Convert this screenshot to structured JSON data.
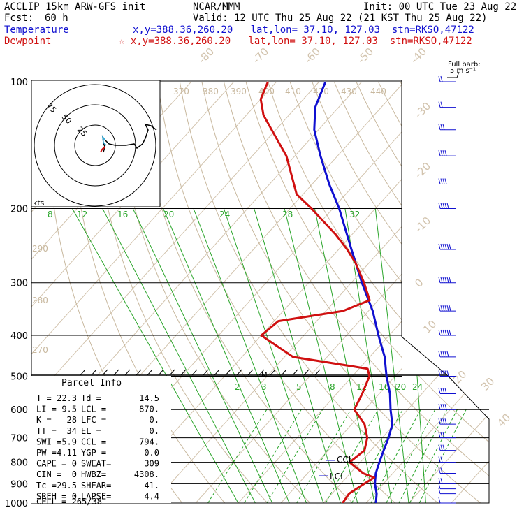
{
  "header": {
    "model": "ACCLIP 15km ARW-GFS init",
    "org": "NCAR/MMM",
    "init": "Init: 00 UTC Tue 23 Aug 22",
    "fcst_label": "Fcst:",
    "fcst_value": "60 h",
    "valid": "Valid: 12 UTC Thu 25 Aug 22 (21 KST Thu 25 Aug 22)",
    "temp_label": "Temperature",
    "temp_info": "x,y=388.36,260.20   lat,lon= 37.10, 127.03  stn=RKSO,47122",
    "dew_label": "Dewpoint",
    "dew_info": "☆ x,y=388.36,260.20   lat,lon= 37.10, 127.03  stn=RKSO,47122"
  },
  "barb_legend": {
    "line1": "Full barb:",
    "line2": "5 m s⁻¹"
  },
  "hodograph": {
    "units": "kts",
    "ring_labels": [
      "75",
      "50",
      "25"
    ]
  },
  "parcel": {
    "title": "Parcel Info",
    "rows": [
      [
        "T  =",
        "22.3",
        "Td =",
        "14.5"
      ],
      [
        "LI =",
        "9.5",
        "LCL =",
        "870."
      ],
      [
        "K  =",
        "28",
        "LFC =",
        "0."
      ],
      [
        "TT =",
        "34",
        "EL  =",
        "0."
      ],
      [
        "SWI =",
        "5.9",
        "CCL =",
        "794."
      ],
      [
        "PW =",
        "4.11",
        "YGP =",
        "0.0"
      ],
      [
        "CAPE =",
        "0",
        "SWEAT=",
        "309"
      ],
      [
        "CIN =",
        "0",
        "HWBZ=",
        "4308."
      ],
      [
        "Tc =",
        "29.5",
        "SHEAR=",
        "41."
      ],
      [
        "SREH =",
        "0",
        "LAPSE=",
        "4.4"
      ]
    ],
    "cell": "CELL = 265/38"
  },
  "chart_data": {
    "type": "line",
    "skew_t": true,
    "y_axis": "pressure (hPa), log scale",
    "pressure_levels": [
      100,
      200,
      300,
      400,
      500,
      600,
      700,
      800,
      900,
      1000
    ],
    "isotherm_labels": [
      "-80",
      "-70",
      "-60",
      "-50",
      "-40",
      "-30",
      "-20",
      "-10",
      "0",
      "10",
      "20",
      "30",
      "40"
    ],
    "theta_labels": [
      "370",
      "380",
      "390",
      "400",
      "410",
      "420",
      "430",
      "440",
      "290",
      "280",
      "270"
    ],
    "mixing_ratio_labels_upper": [
      "8",
      "12",
      "16",
      "20",
      "24",
      "28",
      "32"
    ],
    "mixing_ratio_labels_lower": [
      "2",
      "3",
      "5",
      "8",
      "12",
      "16",
      "20",
      "24"
    ],
    "markers": {
      "ccl": "CCL",
      "lcl": "LCL",
      "m": "M"
    },
    "series": [
      {
        "name": "Temperature",
        "color": "#1010d0",
        "points": [
          [
            1000,
            22.3
          ],
          [
            950,
            20.5
          ],
          [
            900,
            18.0
          ],
          [
            870,
            16.8
          ],
          [
            850,
            16.0
          ],
          [
            800,
            14.5
          ],
          [
            750,
            13.0
          ],
          [
            700,
            11.5
          ],
          [
            650,
            9.5
          ],
          [
            600,
            6.0
          ],
          [
            550,
            2.5
          ],
          [
            500,
            -2.0
          ],
          [
            450,
            -6.5
          ],
          [
            400,
            -12.5
          ],
          [
            350,
            -19.0
          ],
          [
            300,
            -27.5
          ],
          [
            250,
            -37.0
          ],
          [
            200,
            -48.5
          ],
          [
            175,
            -56.0
          ],
          [
            150,
            -64.0
          ],
          [
            130,
            -71.0
          ],
          [
            115,
            -75.5
          ],
          [
            100,
            -78.5
          ]
        ]
      },
      {
        "name": "Dewpoint",
        "color": "#d01010",
        "points": [
          [
            1000,
            14.5
          ],
          [
            950,
            14.0
          ],
          [
            900,
            15.5
          ],
          [
            870,
            16.5
          ],
          [
            850,
            13.0
          ],
          [
            800,
            7.5
          ],
          [
            750,
            8.5
          ],
          [
            700,
            6.5
          ],
          [
            650,
            3.0
          ],
          [
            600,
            -2.5
          ],
          [
            550,
            -4.0
          ],
          [
            500,
            -6.0
          ],
          [
            480,
            -8.0
          ],
          [
            450,
            -28.0
          ],
          [
            400,
            -40.0
          ],
          [
            370,
            -39.0
          ],
          [
            350,
            -26.0
          ],
          [
            330,
            -22.0
          ],
          [
            300,
            -27.0
          ],
          [
            270,
            -33.0
          ],
          [
            250,
            -38.0
          ],
          [
            230,
            -44.0
          ],
          [
            200,
            -55.0
          ],
          [
            185,
            -61.5
          ],
          [
            150,
            -72.0
          ],
          [
            130,
            -81.0
          ],
          [
            120,
            -86.0
          ],
          [
            110,
            -90.0
          ],
          [
            100,
            -92.0
          ]
        ]
      }
    ],
    "wind_barbs_ms": [
      {
        "p": 1000,
        "dir": 200,
        "spd": 3
      },
      {
        "p": 950,
        "dir": 210,
        "spd": 5
      },
      {
        "p": 925,
        "dir": 220,
        "spd": 7
      },
      {
        "p": 900,
        "dir": 230,
        "spd": 8
      },
      {
        "p": 850,
        "dir": 240,
        "spd": 10
      },
      {
        "p": 800,
        "dir": 250,
        "spd": 12
      },
      {
        "p": 750,
        "dir": 255,
        "spd": 14
      },
      {
        "p": 700,
        "dir": 260,
        "spd": 16
      },
      {
        "p": 650,
        "dir": 265,
        "spd": 18
      },
      {
        "p": 600,
        "dir": 265,
        "spd": 20
      },
      {
        "p": 550,
        "dir": 265,
        "spd": 22
      },
      {
        "p": 500,
        "dir": 265,
        "spd": 24
      },
      {
        "p": 450,
        "dir": 265,
        "spd": 26
      },
      {
        "p": 400,
        "dir": 265,
        "spd": 28
      },
      {
        "p": 350,
        "dir": 265,
        "spd": 30
      },
      {
        "p": 300,
        "dir": 265,
        "spd": 30
      },
      {
        "p": 250,
        "dir": 270,
        "spd": 28
      },
      {
        "p": 200,
        "dir": 270,
        "spd": 25
      },
      {
        "p": 175,
        "dir": 270,
        "spd": 22
      },
      {
        "p": 150,
        "dir": 270,
        "spd": 18
      },
      {
        "p": 130,
        "dir": 270,
        "spd": 14
      },
      {
        "p": 115,
        "dir": 270,
        "spd": 10
      },
      {
        "p": 100,
        "dir": 270,
        "spd": 8
      }
    ]
  }
}
